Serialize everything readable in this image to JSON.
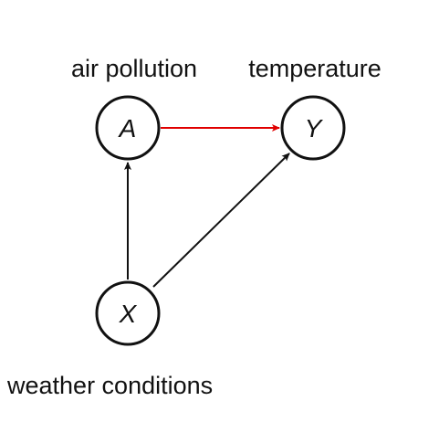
{
  "nodes": [
    {
      "id": "A",
      "label": "A",
      "caption": "air pollution"
    },
    {
      "id": "Y",
      "label": "Y",
      "caption": "temperature"
    },
    {
      "id": "X",
      "label": "X",
      "caption": "weather conditions"
    }
  ]
}
